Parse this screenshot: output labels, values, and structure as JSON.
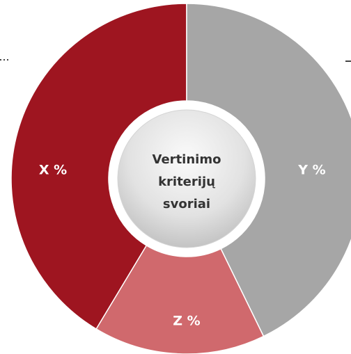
{
  "segments": [
    {
      "label": "X %",
      "color": "#9e1520"
    },
    {
      "label": "Y %",
      "color": "#a6a6a6"
    },
    {
      "label": "Z %",
      "color": "#d0696d"
    }
  ],
  "center": {
    "lines": [
      "Vertinimo",
      "kriterijų",
      "svoriai"
    ]
  }
}
